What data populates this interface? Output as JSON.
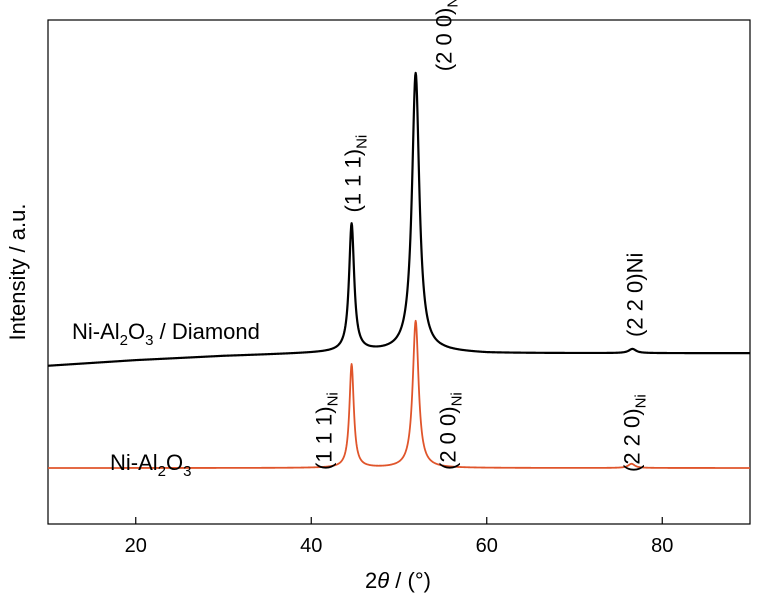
{
  "chart_data": {
    "type": "line",
    "title": "",
    "xlabel": "2θ / (°)",
    "xlabel_parts": {
      "var": "2",
      "theta": "θ",
      "unit": " / (°)"
    },
    "ylabel": "Intensity / a.u.",
    "xlim": [
      10,
      90
    ],
    "x_ticks": [
      20,
      40,
      60,
      80
    ],
    "x_tick_labels": [
      "20",
      "40",
      "60",
      "80"
    ],
    "y_ticks_shown": false,
    "grid": false,
    "legend": "none",
    "series": [
      {
        "name": "Ni-Al2O3 / Diamond",
        "label_parts": [
          "Ni-Al",
          "2",
          "O",
          "3",
          " / Diamond"
        ],
        "color": "#000000",
        "baseline": [
          [
            10,
            0.13
          ],
          [
            20,
            0.17
          ],
          [
            30,
            0.2
          ],
          [
            40,
            0.22
          ],
          [
            45,
            0.23
          ],
          [
            55,
            0.23
          ],
          [
            60,
            0.22
          ],
          [
            70,
            0.22
          ],
          [
            80,
            0.22
          ],
          [
            90,
            0.22
          ]
        ],
        "peaks": [
          {
            "x": 44.6,
            "height": 0.91,
            "width": 0.35
          },
          {
            "x": 51.9,
            "height": 1.99,
            "width": 0.5
          },
          {
            "x": 76.6,
            "height": 0.03,
            "width": 0.5
          }
        ],
        "annotations": [
          {
            "x": 44.6,
            "text": "(1 1 1)",
            "sub": "Ni",
            "inline": false
          },
          {
            "x": 51.9,
            "text": "(2 0 0)",
            "sub": "Ni",
            "inline": false
          },
          {
            "x": 76.6,
            "text": "(2 2 0)",
            "sub": "Ni",
            "inline": true
          }
        ]
      },
      {
        "name": "Ni-Al2O3",
        "label_parts": [
          "Ni-Al",
          "2",
          "O",
          "3",
          ""
        ],
        "color": "#e0552b",
        "baseline": [
          [
            10,
            -0.6
          ],
          [
            90,
            -0.6
          ]
        ],
        "peaks": [
          {
            "x": 44.6,
            "height": 0.74,
            "width": 0.3
          },
          {
            "x": 51.9,
            "height": 1.05,
            "width": 0.4
          },
          {
            "x": 76.5,
            "height": 0.03,
            "width": 0.45
          }
        ],
        "annotations": [
          {
            "x": 44.6,
            "text": "(1 1 1)",
            "sub": "Ni",
            "inline": false
          },
          {
            "x": 51.9,
            "text": "(2 0 0)",
            "sub": "Ni",
            "inline": false
          },
          {
            "x": 76.5,
            "text": "(2 2 0)",
            "sub": "Ni",
            "inline": false
          }
        ]
      }
    ]
  }
}
